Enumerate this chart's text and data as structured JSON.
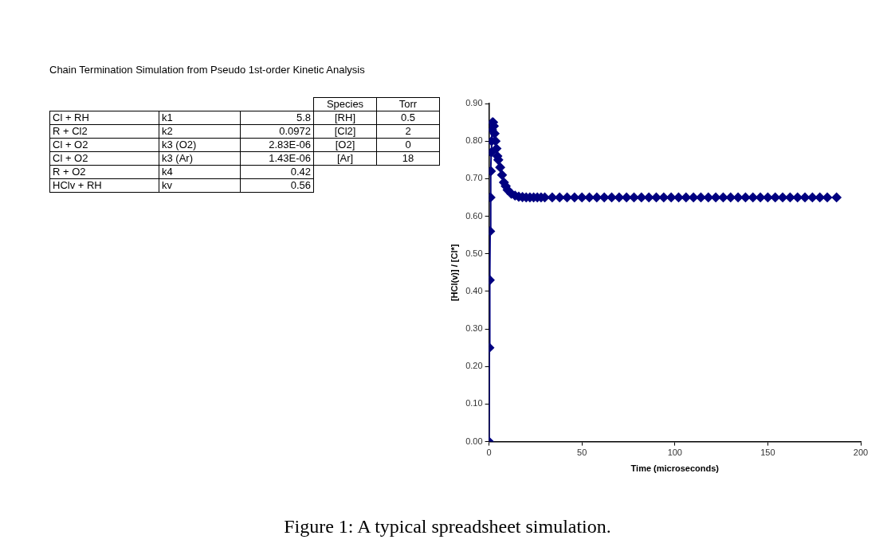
{
  "chart_data": [
    {
      "type": "other",
      "title": "Chain Termination Simulation from Pseudo 1st-order Kinetic Analysis",
      "cell_labels": [
        [
          null,
          null,
          null,
          "Species",
          "Torr"
        ],
        [
          "Cl + RH",
          "k1",
          "5.8",
          "[RH]",
          "0.5"
        ],
        [
          "R + Cl2",
          "k2",
          "0.0972",
          "[Cl2]",
          "2"
        ],
        [
          "Cl + O2",
          "k3 (O2)",
          "2.83E-06",
          "[O2]",
          "0"
        ],
        [
          "Cl + O2",
          "k3 (Ar)",
          "1.43E-06",
          "[Ar]",
          "18"
        ],
        [
          "R + O2",
          "k4",
          "0.42",
          null,
          null
        ],
        [
          "HClv + RH",
          "kv",
          "0.56",
          null,
          null
        ]
      ]
    },
    {
      "type": "line",
      "xlabel": "Time (microseconds)",
      "ylabel": "[HCl(v)] / [Cl*]",
      "x": [
        0,
        0.2,
        0.4,
        0.6,
        0.8,
        1,
        1.2,
        1.4,
        1.6,
        1.8,
        2.2,
        2.6,
        3,
        3.5,
        4,
        4.5,
        5,
        6,
        7,
        8,
        9,
        10,
        12,
        14,
        16,
        18,
        20,
        22,
        24,
        26,
        28,
        30,
        34,
        38,
        42,
        46,
        50,
        54,
        58,
        62,
        66,
        70,
        74,
        78,
        82,
        86,
        90,
        94,
        98,
        102,
        106,
        110,
        114,
        118,
        122,
        126,
        130,
        134,
        138,
        142,
        146,
        150,
        154,
        158,
        162,
        166,
        170,
        174,
        178,
        182,
        187
      ],
      "series": [
        {
          "color": "#000080",
          "values": [
            0,
            0.25,
            0.43,
            0.56,
            0.65,
            0.72,
            0.77,
            0.8,
            0.83,
            0.85,
            0.85,
            0.84,
            0.82,
            0.8,
            0.78,
            0.76,
            0.75,
            0.73,
            0.71,
            0.69,
            0.68,
            0.67,
            0.66,
            0.655,
            0.652,
            0.651,
            0.65,
            0.65,
            0.65,
            0.65,
            0.65,
            0.65,
            0.65,
            0.65,
            0.65,
            0.65,
            0.65,
            0.65,
            0.65,
            0.65,
            0.65,
            0.65,
            0.65,
            0.65,
            0.65,
            0.65,
            0.65,
            0.65,
            0.65,
            0.65,
            0.65,
            0.65,
            0.65,
            0.65,
            0.65,
            0.65,
            0.65,
            0.65,
            0.65,
            0.65,
            0.65,
            0.65,
            0.65,
            0.65,
            0.65,
            0.65,
            0.65,
            0.65,
            0.65,
            0.65,
            0.65
          ]
        }
      ],
      "xlim": [
        0,
        200
      ],
      "xticks": [
        0,
        50,
        100,
        150,
        200
      ],
      "ylim": [
        0,
        0.9
      ],
      "yticks": [
        {
          "value": 0,
          "label": "0.00"
        },
        {
          "value": 0.1,
          "label": "0.10"
        },
        {
          "value": 0.2,
          "label": "0.20"
        },
        {
          "value": 0.3,
          "label": "0.30"
        },
        {
          "value": 0.4,
          "label": "0.40"
        },
        {
          "value": 0.5,
          "label": "0.50"
        },
        {
          "value": 0.6,
          "label": "0.60"
        },
        {
          "value": 0.7,
          "label": "0.70"
        },
        {
          "value": 0.8,
          "label": "0.80"
        },
        {
          "value": 0.9,
          "label": "0.90"
        }
      ],
      "marker": "diamond",
      "legend": false,
      "grid": false,
      "annotations": [
        "Figure 1: A typical spreadsheet simulation."
      ]
    }
  ]
}
